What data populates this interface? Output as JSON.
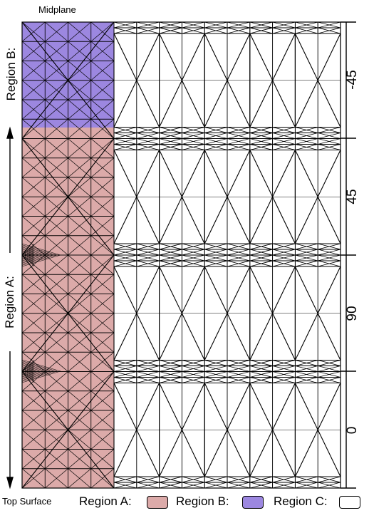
{
  "title": "Midplane",
  "bottom_label": "Top Surface",
  "region_labels": {
    "b_side": "Region B:",
    "a_side": "Region A:"
  },
  "ply_angles": [
    "-45",
    "45",
    "90",
    "0"
  ],
  "legend": {
    "items": [
      {
        "label": "Region A:",
        "color": "#dcaaa9"
      },
      {
        "label": "Region B:",
        "color": "#9c87e0"
      },
      {
        "label": "Region C:",
        "color": "#ffffff"
      }
    ]
  },
  "colors": {
    "region_a": "#dcaaa9",
    "region_b": "#9c87e0",
    "region_c": "#ffffff",
    "mesh": "#000000"
  }
}
